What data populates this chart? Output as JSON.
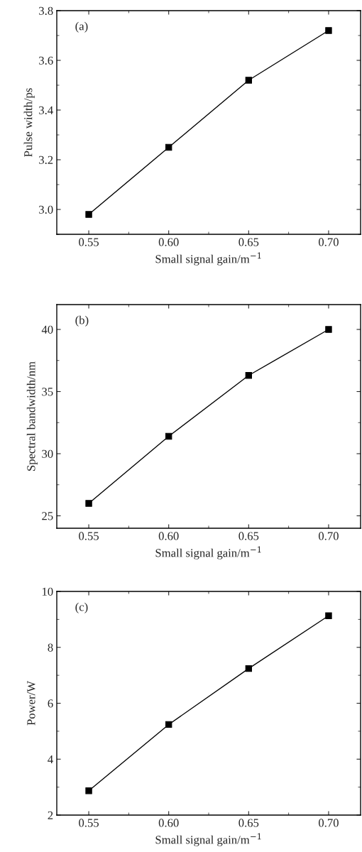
{
  "chart_data": [
    {
      "type": "line",
      "x": [
        0.55,
        0.6,
        0.65,
        0.7
      ],
      "values": [
        2.98,
        3.25,
        3.52,
        3.72
      ],
      "color": "#000000",
      "marker": "square",
      "line_style": "solid",
      "xlabel": "Small signal gain/m$^{−1}$",
      "ylabel": "Pulse width/ps",
      "annotations": [
        "(a)"
      ],
      "xlim": [
        0.53,
        0.72
      ],
      "xticks": [
        {
          "value": 0.55,
          "label": "0.55"
        },
        {
          "value": 0.6,
          "label": "0.60"
        },
        {
          "value": 0.65,
          "label": "0.65"
        },
        {
          "value": 0.7,
          "label": "0.70"
        }
      ],
      "ylim": [
        2.9,
        3.8
      ],
      "yticks": [
        {
          "value": 3.0,
          "label": "3.0"
        },
        {
          "value": 3.2,
          "label": "3.2"
        },
        {
          "value": 3.4,
          "label": "3.4"
        },
        {
          "value": 3.6,
          "label": "3.6"
        },
        {
          "value": 3.8,
          "label": "3.8"
        }
      ],
      "grid": false
    },
    {
      "type": "line",
      "x": [
        0.55,
        0.6,
        0.65,
        0.7
      ],
      "values": [
        26.0,
        31.4,
        36.3,
        40.0
      ],
      "color": "#000000",
      "marker": "square",
      "line_style": "solid",
      "xlabel": "Small signal gain/m$^{−1}$",
      "ylabel": "Spectral bandwidth/nm",
      "annotations": [
        "(b)"
      ],
      "xlim": [
        0.53,
        0.72
      ],
      "xticks": [
        {
          "value": 0.55,
          "label": "0.55"
        },
        {
          "value": 0.6,
          "label": "0.60"
        },
        {
          "value": 0.65,
          "label": "0.65"
        },
        {
          "value": 0.7,
          "label": "0.70"
        }
      ],
      "ylim": [
        24,
        42
      ],
      "yticks": [
        25,
        30,
        35,
        40
      ],
      "grid": false
    },
    {
      "type": "line",
      "x": [
        0.55,
        0.6,
        0.65,
        0.7
      ],
      "values": [
        2.87,
        5.24,
        7.24,
        9.13
      ],
      "color": "#000000",
      "marker": "square",
      "line_style": "solid",
      "xlabel": "Small signal gain/m$^{−1}$",
      "ylabel": "Power/W",
      "annotations": [
        "(c)"
      ],
      "xlim": [
        0.53,
        0.72
      ],
      "xticks": [
        {
          "value": 0.55,
          "label": "0.55"
        },
        {
          "value": 0.6,
          "label": "0.60"
        },
        {
          "value": 0.65,
          "label": "0.65"
        },
        {
          "value": 0.7,
          "label": "0.70"
        }
      ],
      "ylim": [
        2,
        10
      ],
      "yticks": [
        2,
        4,
        6,
        8,
        10
      ],
      "grid": false
    }
  ]
}
